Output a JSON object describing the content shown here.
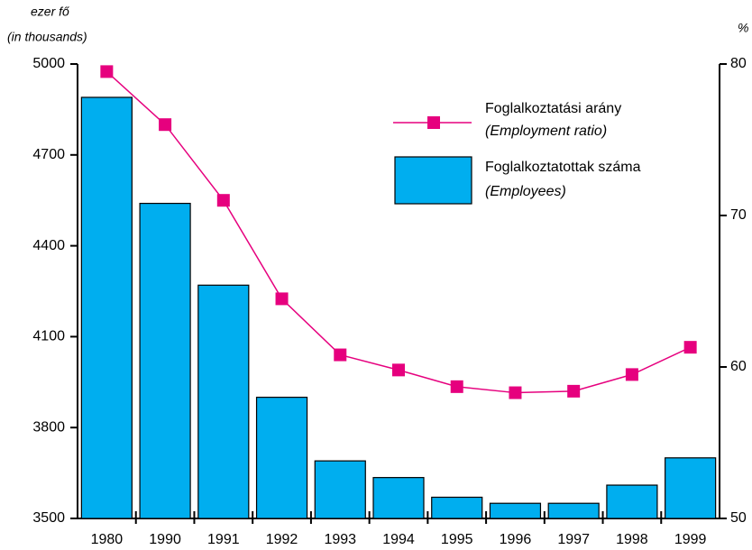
{
  "chart_data": {
    "type": "bar",
    "y_label": "ezer fő",
    "y_label_en": "(in thousands)",
    "y2_label": "%",
    "categories": [
      "1980",
      "1990",
      "1991",
      "1992",
      "1993",
      "1994",
      "1995",
      "1996",
      "1997",
      "1998",
      "1999"
    ],
    "series": [
      {
        "name": "Foglalkoztatottak száma",
        "name_en": "(Employees)",
        "type": "bar",
        "color": "#00aeef",
        "axis": "y",
        "values": [
          4890,
          4540,
          4270,
          3900,
          3690,
          3635,
          3570,
          3550,
          3550,
          3610,
          3700
        ]
      },
      {
        "name": "Foglalkoztatási arány",
        "name_en": "(Employment ratio)",
        "type": "line",
        "color": "#e6007e",
        "axis": "y2",
        "values": [
          79.5,
          76.0,
          71.0,
          64.5,
          60.8,
          59.8,
          58.7,
          58.3,
          58.4,
          59.5,
          61.3
        ]
      }
    ],
    "ylim": [
      3500,
      5000
    ],
    "yticks": [
      3500,
      3800,
      4100,
      4400,
      4700,
      5000
    ],
    "y2lim": [
      50,
      80
    ],
    "y2ticks": [
      50,
      60,
      70,
      80
    ]
  }
}
